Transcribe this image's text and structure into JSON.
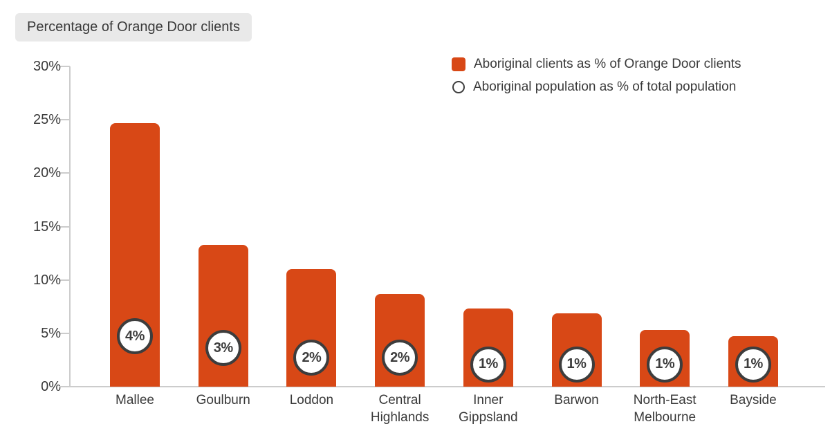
{
  "title": "Percentage of Orange Door clients",
  "legend": [
    {
      "marker": "square-icon",
      "label": "Aboriginal clients as % of Orange Door clients"
    },
    {
      "marker": "circle-icon",
      "label": "Aboriginal population as % of total population"
    }
  ],
  "colors": {
    "bar": "#d84816",
    "circle_border": "#3d3d3d",
    "circle_fill": "#ffffff",
    "axis_line": "#cccccc",
    "text": "#3a3a3a",
    "title_bg": "#e9e9e9"
  },
  "chart_data": {
    "type": "bar",
    "title": "Percentage of Orange Door clients",
    "categories": [
      "Mallee",
      "Goulburn",
      "Loddon",
      "Central Highlands",
      "Inner Gippsland",
      "Barwon",
      "North-East Melbourne",
      "Bayside"
    ],
    "series": [
      {
        "name": "Aboriginal clients as % of Orange Door clients",
        "type": "bar",
        "values": [
          24.7,
          13.3,
          11.0,
          8.7,
          7.3,
          6.9,
          5.3,
          4.7
        ]
      },
      {
        "name": "Aboriginal population as % of total population",
        "type": "point-label",
        "values": [
          4,
          3,
          2,
          2,
          1,
          1,
          1,
          1
        ],
        "labels": [
          "4%",
          "3%",
          "2%",
          "2%",
          "1%",
          "1%",
          "1%",
          "1%"
        ],
        "marker_center_pct": [
          4.7,
          3.6,
          2.7,
          2.7,
          2.1,
          2.1,
          2.1,
          2.1
        ]
      }
    ],
    "xlabel": "",
    "ylabel": "",
    "y_ticks": [
      "0%",
      "5%",
      "10%",
      "15%",
      "20%",
      "25%",
      "30%"
    ],
    "ylim": [
      0,
      30
    ],
    "grid": false,
    "legend_position": "top-right"
  }
}
